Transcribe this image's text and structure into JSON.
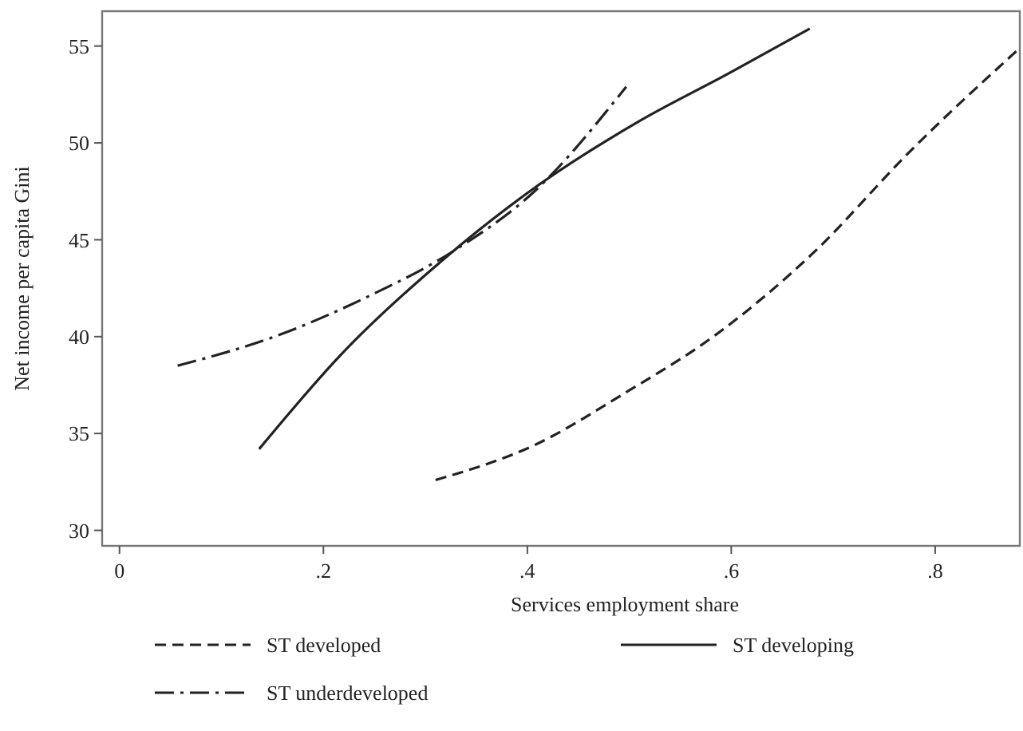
{
  "chart_data": {
    "type": "line",
    "xlabel": "Services employment share",
    "ylabel": "Net income per capita Gini",
    "xlim": [
      -0.017,
      0.883
    ],
    "ylim": [
      29.2,
      56.8
    ],
    "xticks": [
      0,
      {
        "value": 0.2,
        "label": ".2"
      },
      {
        "value": 0.4,
        "label": ".4"
      },
      {
        "value": 0.6,
        "label": ".6"
      },
      {
        "value": 0.8,
        "label": ".8"
      }
    ],
    "yticks": [
      30,
      35,
      40,
      45,
      50,
      55
    ],
    "grid": false,
    "legend": "bottom",
    "marker": "none",
    "series": [
      {
        "name": "ST developed",
        "color": "#222222",
        "line_style": "dashed",
        "x": [
          0.31,
          0.407,
          0.496,
          0.585,
          0.68,
          0.776,
          0.881
        ],
        "values": [
          32.6,
          34.4,
          37.1,
          40.1,
          44.3,
          49.6,
          54.8
        ]
      },
      {
        "name": "ST developing",
        "color": "#222222",
        "line_style": "solid",
        "x": [
          0.137,
          0.216,
          0.318,
          0.413,
          0.509,
          0.598,
          0.677
        ],
        "values": [
          34.2,
          39.0,
          44.0,
          47.9,
          51.1,
          53.6,
          55.9
        ]
      },
      {
        "name": "ST underdeveloped",
        "color": "#222222",
        "line_style": "dashdot",
        "x": [
          0.057,
          0.152,
          0.241,
          0.33,
          0.407,
          0.497
        ],
        "values": [
          38.5,
          40.0,
          42.0,
          44.5,
          47.5,
          52.9
        ]
      }
    ]
  }
}
